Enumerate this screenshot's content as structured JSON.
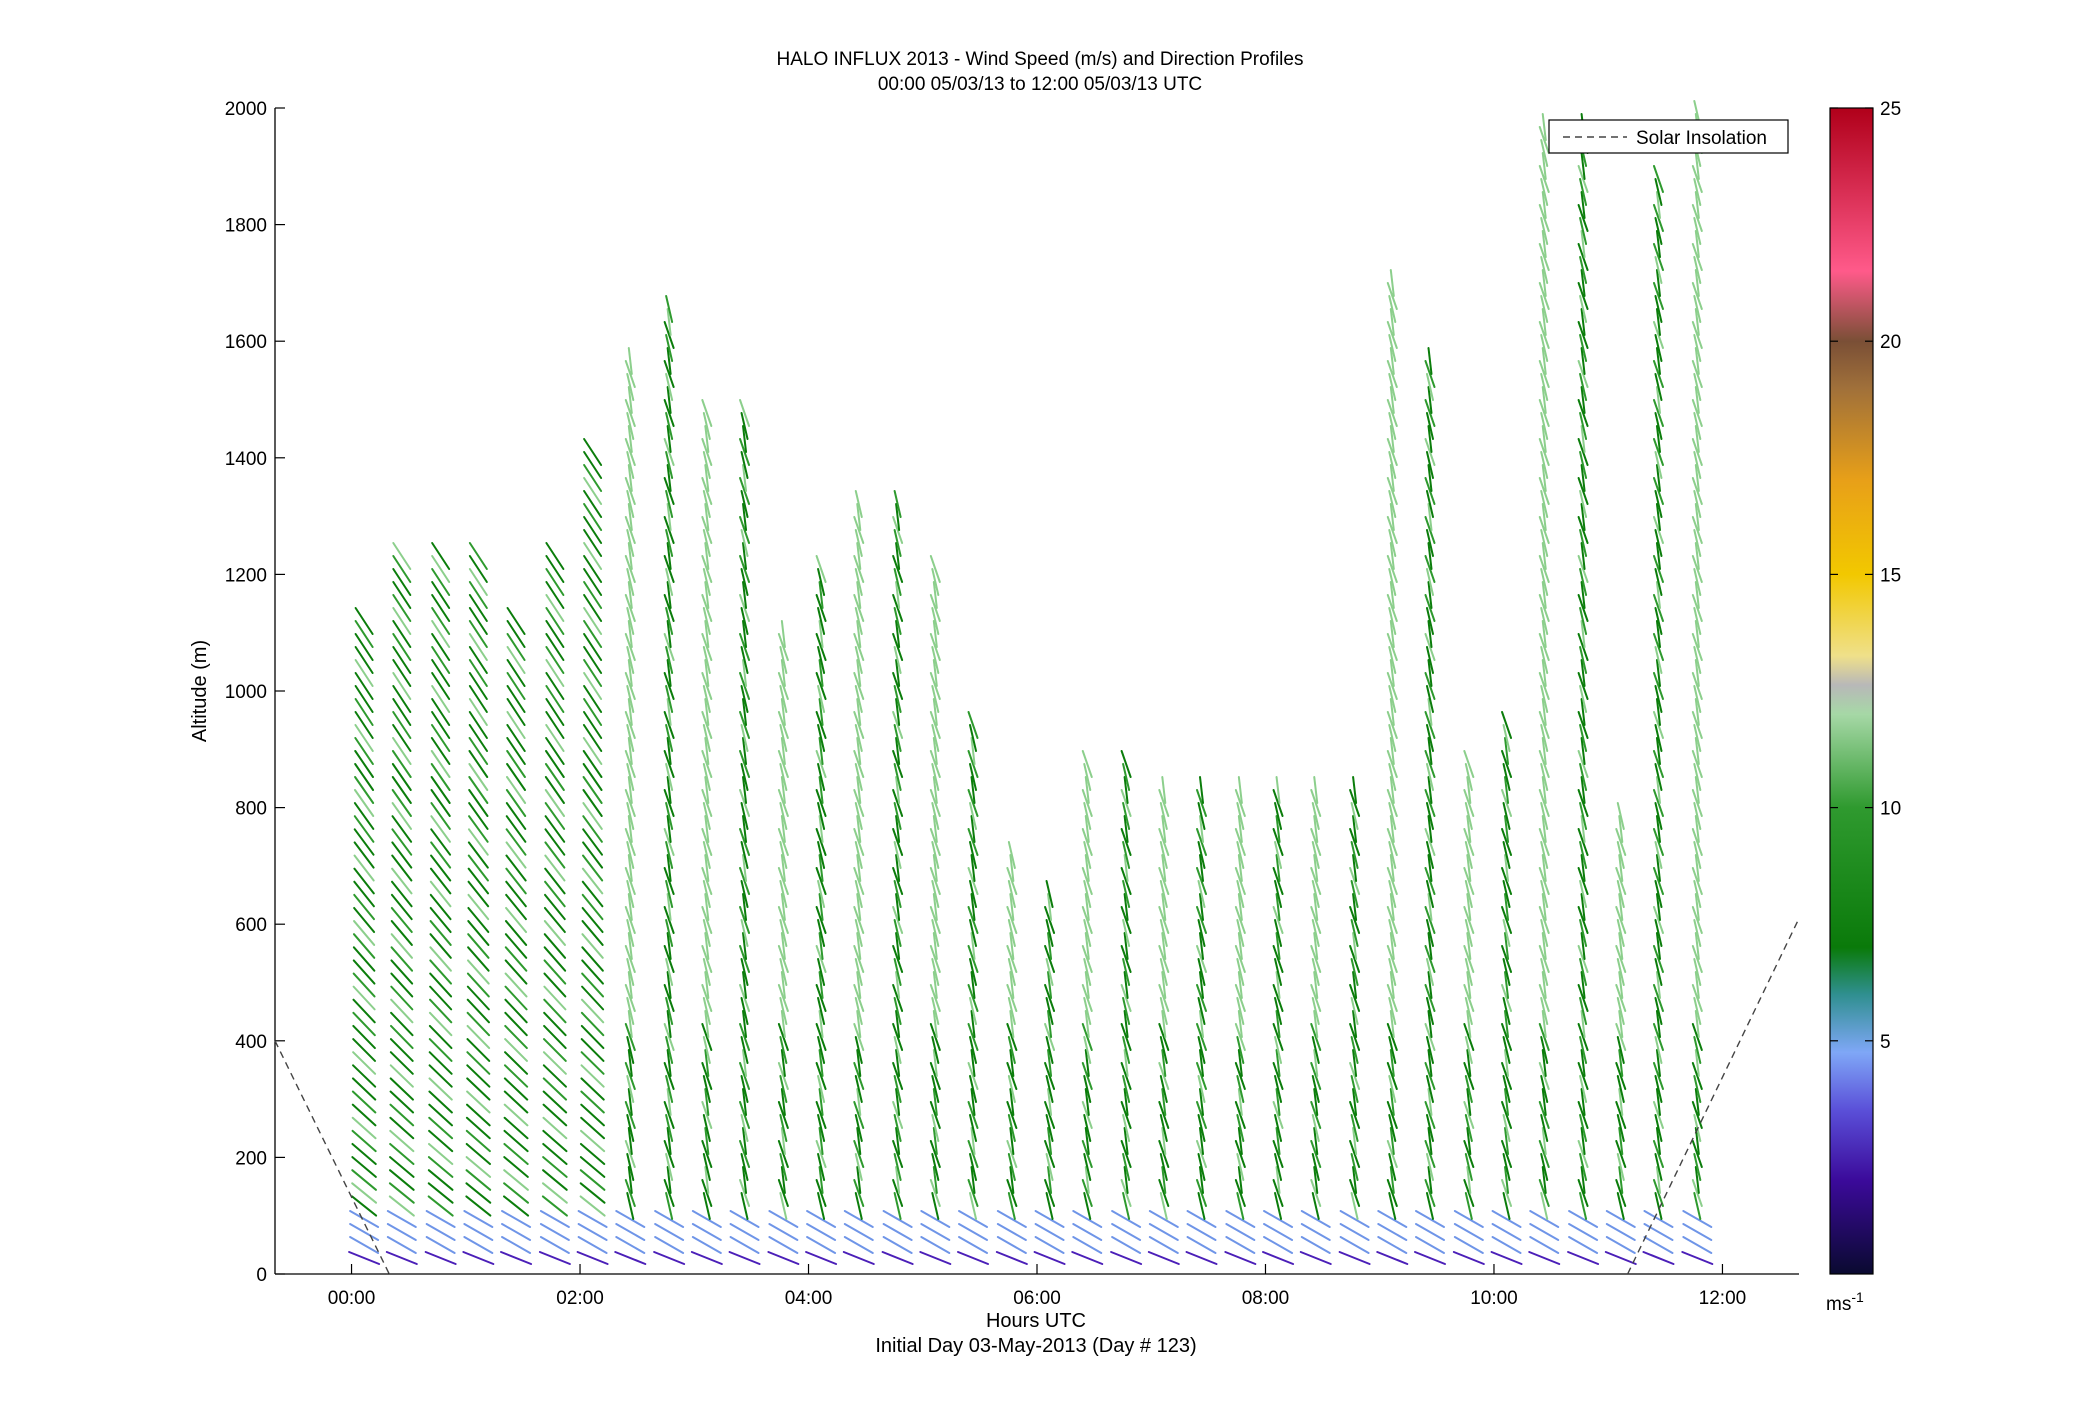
{
  "chart_data": {
    "type": "quiver",
    "title": "HALO INFLUX 2013 - Wind Speed (m/s) and Direction Profiles",
    "subtitle": "00:00 05/03/13 to 12:00 05/03/13  UTC",
    "xlabel": "Hours UTC",
    "x_sublabel": "Initial Day 03-May-2013 (Day # 123)",
    "ylabel": "Altitude (m)",
    "xlim": [
      -0.67,
      12.67
    ],
    "ylim": [
      0,
      2000
    ],
    "x_ticks": [
      "00:00",
      "02:00",
      "04:00",
      "06:00",
      "08:00",
      "10:00",
      "12:00"
    ],
    "y_ticks": [
      "0",
      "200",
      "400",
      "600",
      "800",
      "1000",
      "1200",
      "1400",
      "1600",
      "1800",
      "2000"
    ],
    "colorbar": {
      "range": [
        0,
        25
      ],
      "ticks": [
        "5",
        "10",
        "15",
        "20",
        "25"
      ],
      "unit_base": "ms",
      "unit_exp": "-1"
    },
    "legend": {
      "position": "top-right",
      "entries": [
        {
          "label": "Solar Insolation",
          "style": "dashed",
          "color": "#444444"
        }
      ]
    },
    "solar_insolation": [
      {
        "x": [
          -0.67,
          0.33
        ],
        "y": [
          400,
          0
        ]
      },
      {
        "x": [
          11.17,
          12.67
        ],
        "y": [
          0,
          610
        ]
      }
    ],
    "profiles": [
      {
        "t": 0.11,
        "top": 1140,
        "dir": "se"
      },
      {
        "t": 0.44,
        "top": 1250,
        "dir": "se"
      },
      {
        "t": 0.78,
        "top": 1250,
        "dir": "se"
      },
      {
        "t": 1.11,
        "top": 1250,
        "dir": "se"
      },
      {
        "t": 1.44,
        "top": 1140,
        "dir": "se"
      },
      {
        "t": 1.78,
        "top": 1250,
        "dir": "se"
      },
      {
        "t": 2.11,
        "top": 1410,
        "dir": "se"
      },
      {
        "t": 2.44,
        "top": 1580,
        "dir": "s"
      },
      {
        "t": 2.78,
        "top": 1670,
        "dir": "s"
      },
      {
        "t": 3.11,
        "top": 1490,
        "dir": "s"
      },
      {
        "t": 3.44,
        "top": 1490,
        "dir": "s"
      },
      {
        "t": 3.78,
        "top": 1100,
        "dir": "s"
      },
      {
        "t": 4.11,
        "top": 1210,
        "dir": "s"
      },
      {
        "t": 4.44,
        "top": 1340,
        "dir": "s"
      },
      {
        "t": 4.78,
        "top": 1340,
        "dir": "s"
      },
      {
        "t": 5.11,
        "top": 1210,
        "dir": "s"
      },
      {
        "t": 5.44,
        "top": 950,
        "dir": "s"
      },
      {
        "t": 5.78,
        "top": 730,
        "dir": "s"
      },
      {
        "t": 6.11,
        "top": 670,
        "dir": "s"
      },
      {
        "t": 6.44,
        "top": 880,
        "dir": "s"
      },
      {
        "t": 6.78,
        "top": 880,
        "dir": "s"
      },
      {
        "t": 7.11,
        "top": 840,
        "dir": "s"
      },
      {
        "t": 7.44,
        "top": 840,
        "dir": "s"
      },
      {
        "t": 7.78,
        "top": 840,
        "dir": "s"
      },
      {
        "t": 8.11,
        "top": 840,
        "dir": "s"
      },
      {
        "t": 8.44,
        "top": 840,
        "dir": "s"
      },
      {
        "t": 8.78,
        "top": 840,
        "dir": "s"
      },
      {
        "t": 9.11,
        "top": 1710,
        "dir": "s"
      },
      {
        "t": 9.44,
        "top": 1580,
        "dir": "s"
      },
      {
        "t": 9.78,
        "top": 880,
        "dir": "s"
      },
      {
        "t": 10.11,
        "top": 950,
        "dir": "s"
      },
      {
        "t": 10.44,
        "top": 1970,
        "dir": "s"
      },
      {
        "t": 10.78,
        "top": 1970,
        "dir": "s"
      },
      {
        "t": 11.11,
        "top": 800,
        "dir": "s"
      },
      {
        "t": 11.44,
        "top": 1880,
        "dir": "s"
      },
      {
        "t": 11.78,
        "top": 2000,
        "dir": "s"
      }
    ],
    "colors": {
      "near_surface_purple": "#4b1fb8",
      "near_surface_blue": "#6f95e8",
      "dark_green": "#0b7d0b",
      "mid_green": "#2e9a2e",
      "light_green": "#8ccf8c",
      "axis": "#000000",
      "solar_line": "#444444"
    }
  }
}
